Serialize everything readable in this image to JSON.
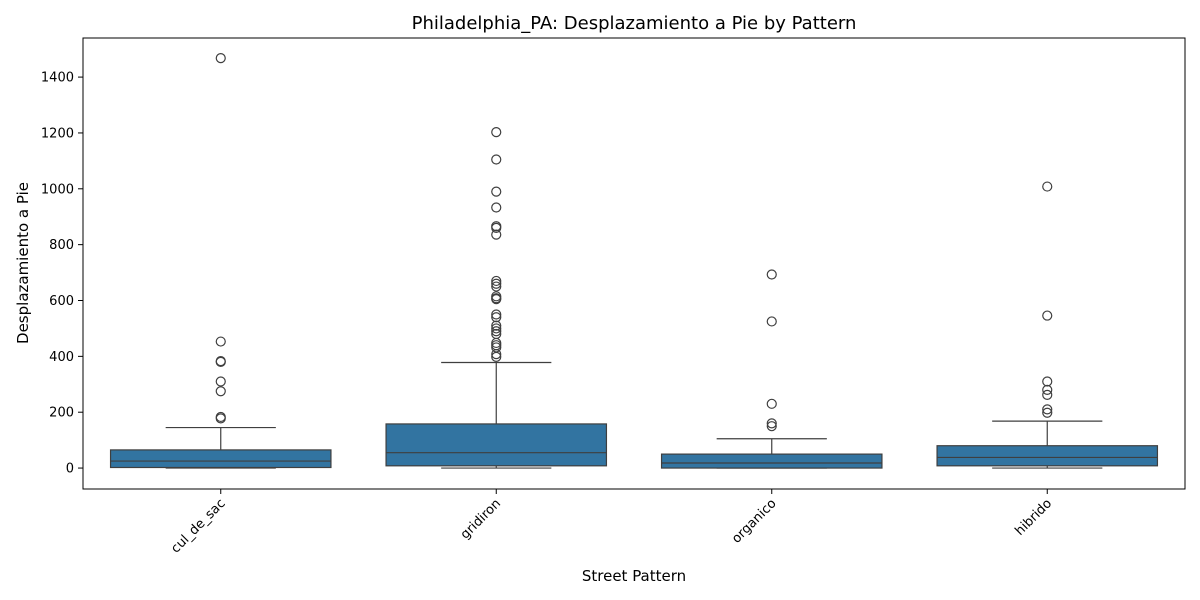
{
  "chart_data": {
    "type": "box",
    "title": "Philadelphia_PA: Desplazamiento a Pie by Pattern",
    "xlabel": "Street Pattern",
    "ylabel": "Desplazamiento a Pie",
    "ylim": [
      -75,
      1540
    ],
    "yticks": [
      0,
      200,
      400,
      600,
      800,
      1000,
      1200,
      1400
    ],
    "grid": false,
    "box_color": "#3274a1",
    "edge_color": "#3f3f3f",
    "categories": [
      "cul_de_sac",
      "gridiron",
      "organico",
      "hibrido"
    ],
    "boxes": [
      {
        "category": "cul_de_sac",
        "whisker_low": 0,
        "q1": 2,
        "median": 25,
        "q3": 65,
        "whisker_high": 145,
        "outliers": [
          1468,
          453,
          383,
          380,
          310,
          275,
          183,
          178
        ]
      },
      {
        "category": "gridiron",
        "whisker_low": 0,
        "q1": 8,
        "median": 55,
        "q3": 158,
        "whisker_high": 378,
        "outliers": [
          1203,
          1105,
          990,
          933,
          866,
          860,
          836,
          670,
          660,
          650,
          615,
          608,
          605,
          550,
          540,
          510,
          500,
          490,
          480,
          448,
          440,
          432,
          408,
          398
        ]
      },
      {
        "category": "organico",
        "whisker_low": 0,
        "q1": 0,
        "median": 18,
        "q3": 50,
        "whisker_high": 105,
        "outliers": [
          693,
          525,
          230,
          160,
          150
        ]
      },
      {
        "category": "hibrido",
        "whisker_low": 0,
        "q1": 8,
        "median": 38,
        "q3": 80,
        "whisker_high": 168,
        "outliers": [
          1008,
          546,
          310,
          280,
          262,
          210,
          198
        ]
      }
    ]
  }
}
